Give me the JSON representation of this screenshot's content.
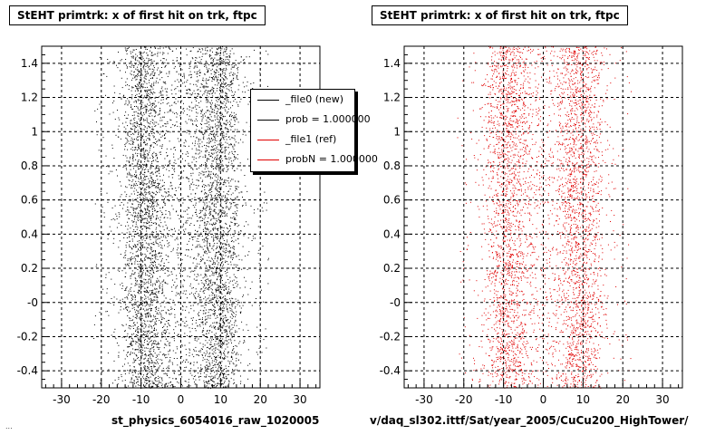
{
  "footer": "...",
  "legend": {
    "entries": [
      {
        "label": "_file0 (new)",
        "color": "#000000"
      },
      {
        "label": "prob = 1.000000",
        "color": "#000000"
      },
      {
        "label": "_file1 (ref)",
        "color": "#e00000"
      },
      {
        "label": "probN = 1.000000",
        "color": "#e00000"
      }
    ]
  },
  "chart_data": [
    {
      "type": "scatter",
      "title": "StEHT primtrk: x of first hit on trk, ftpc",
      "xlabel": "st_physics_6054016_raw_1020005",
      "ylabel": "",
      "xlim": [
        -35,
        35
      ],
      "ylim": [
        -0.5,
        1.5
      ],
      "x_ticks": [
        "-30",
        "-20",
        "-10",
        "0",
        "10",
        "20",
        "30"
      ],
      "y_ticks": [
        "-0.4",
        "-0.2",
        "-0",
        "0.2",
        "0.4",
        "0.6",
        "0.8",
        "1",
        "1.2",
        "1.4"
      ],
      "grid": true,
      "marker_color": "#000000",
      "x_distribution": "dense vertical bands near x=-9 and x=+9, sparse tails out to about +/-22",
      "series": [
        {
          "name": "_file0 (new)",
          "points": "approx. 6000 random points"
        }
      ]
    },
    {
      "type": "scatter",
      "title": "StEHT primtrk: x of first hit on trk, ftpc",
      "xlabel": "v/daq_sl302.ittf/Sat/year_2005/CuCu200_HighTower/",
      "ylabel": "",
      "xlim": [
        -35,
        35
      ],
      "ylim": [
        -0.5,
        1.5
      ],
      "x_ticks": [
        "-30",
        "-20",
        "-10",
        "0",
        "10",
        "20",
        "30"
      ],
      "y_ticks": [
        "-0.4",
        "-0.2",
        "-0",
        "0.2",
        "0.4",
        "0.6",
        "0.8",
        "1",
        "1.2",
        "1.4"
      ],
      "grid": true,
      "marker_color": "#e00000",
      "x_distribution": "dense vertical bands near x=-9 and x=+9, sparse tails out to about +/-22",
      "series": [
        {
          "name": "_file1 (ref)",
          "points": "approx. 4500 random points"
        }
      ]
    }
  ]
}
